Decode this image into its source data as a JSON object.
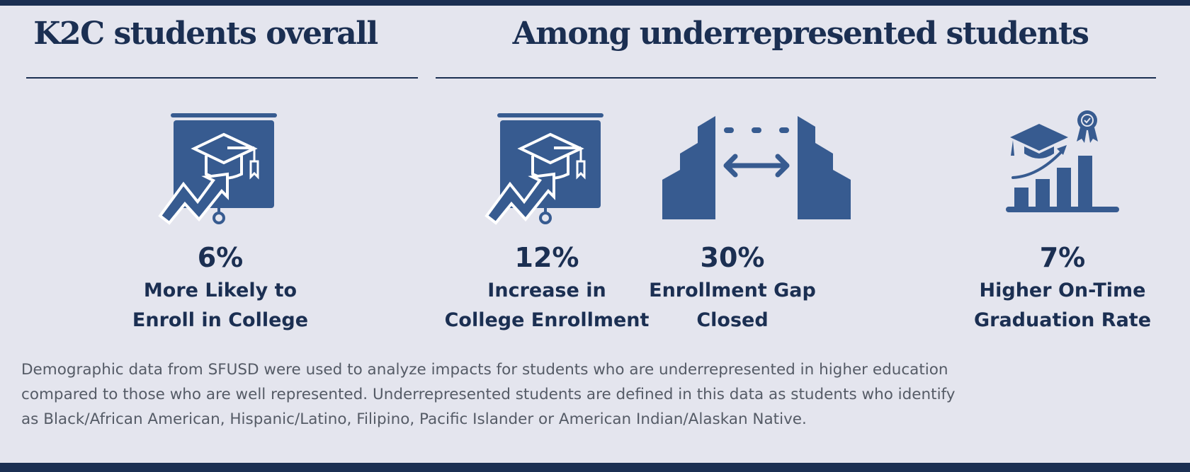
{
  "headings": {
    "overall": "K2C students overall",
    "underrepresented": "Among underrepresented students"
  },
  "stats": [
    {
      "icon": "presentation-graduation-cap-chart-icon",
      "value": "6%",
      "line1": "More Likely to",
      "line2": "Enroll in College"
    },
    {
      "icon": "presentation-graduation-cap-chart-icon",
      "value": "12%",
      "line1": "Increase in",
      "line2": "College Enrollment"
    },
    {
      "icon": "gap-closing-buildings-icon",
      "value": "30%",
      "line1": "Enrollment Gap",
      "line2": "Closed"
    },
    {
      "icon": "graduation-growth-chart-icon",
      "value": "7%",
      "line1": "Higher On-Time",
      "line2": "Graduation Rate"
    }
  ],
  "footnote": {
    "line1": "Demographic data from SFUSD were used to analyze impacts for students who are underrepresented in higher education",
    "line2": "compared to those who are well represented. Underrepresented students are defined in this data as students who identify",
    "line3": "as Black/African American, Hispanic/Latino, Filipino, Pacific Islander or American Indian/Alaskan Native."
  },
  "colors": {
    "navy": "#1b2f52",
    "icon_blue": "#375b90",
    "background": "#e4e5ee",
    "footnote_gray": "#555b66"
  }
}
